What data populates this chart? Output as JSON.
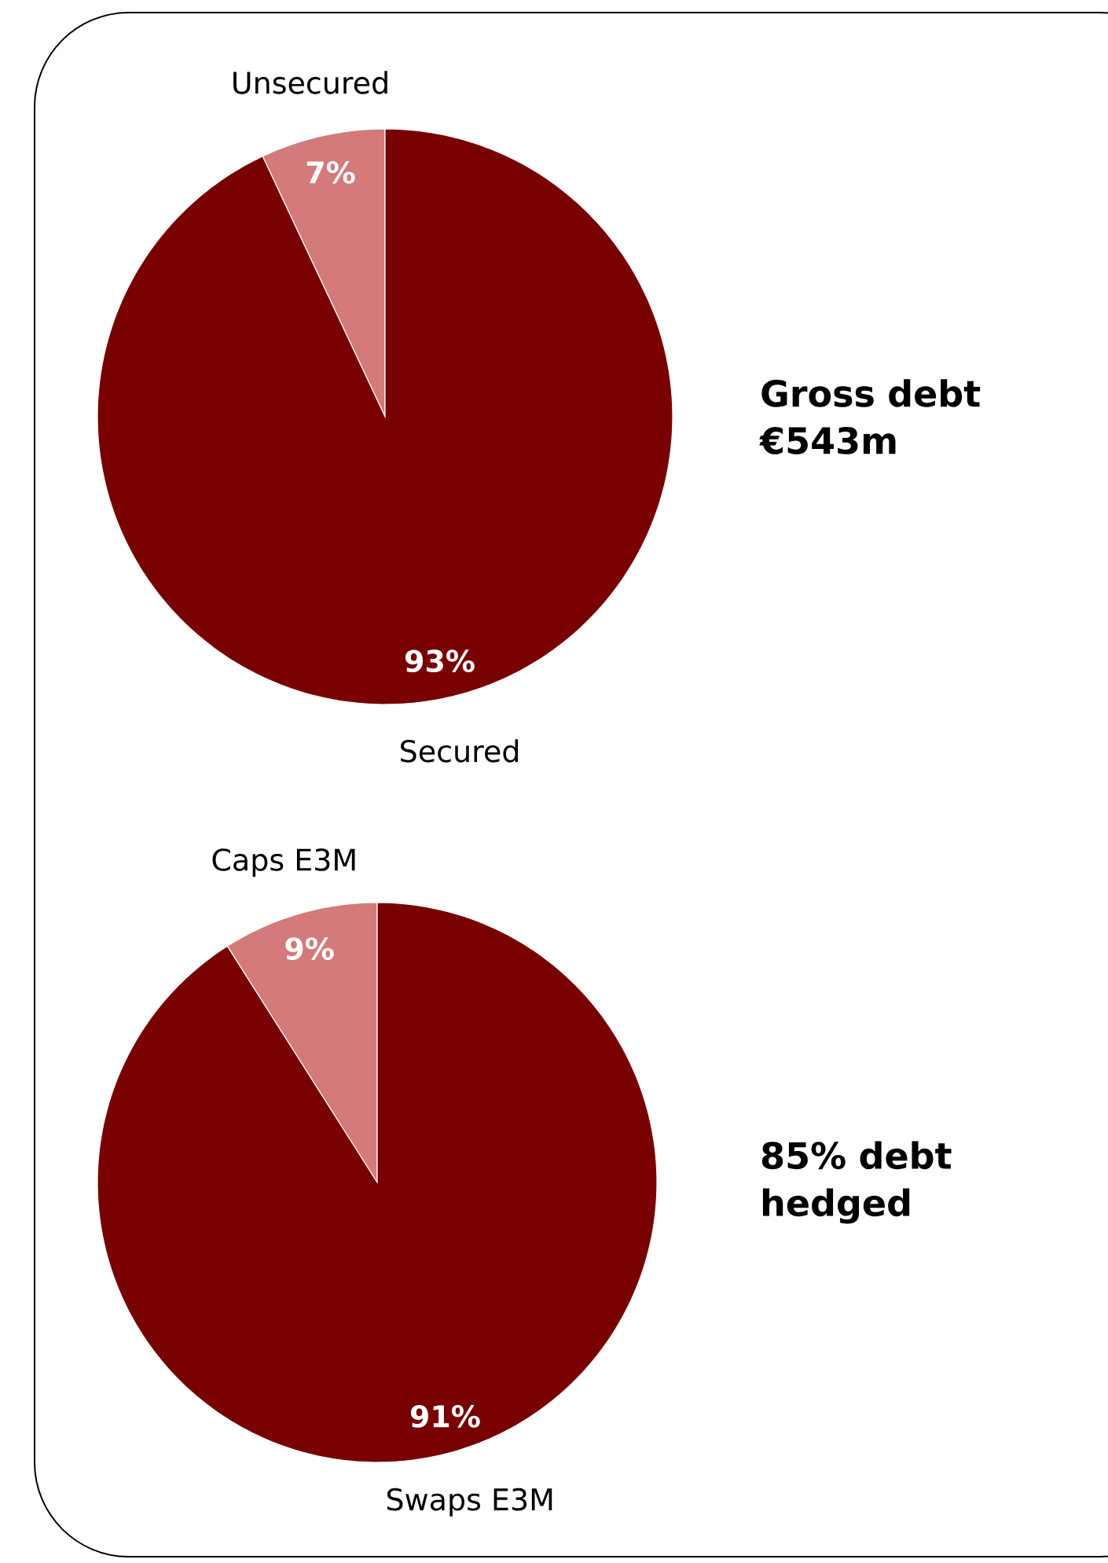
{
  "chart_data": [
    {
      "type": "pie",
      "title": "Gross debt €543m",
      "categories": [
        "Unsecured",
        "Secured"
      ],
      "values": [
        7,
        93
      ],
      "value_labels": [
        "7%",
        "93%"
      ],
      "colors": [
        "#d47a7a",
        "#780000"
      ],
      "legend": false
    },
    {
      "type": "pie",
      "title": "85% debt hedged",
      "categories": [
        "Caps E3M",
        "Swaps E3M"
      ],
      "values": [
        9,
        91
      ],
      "value_labels": [
        "9%",
        "91%"
      ],
      "colors": [
        "#d47a7a",
        "#780000"
      ],
      "legend": false
    }
  ]
}
